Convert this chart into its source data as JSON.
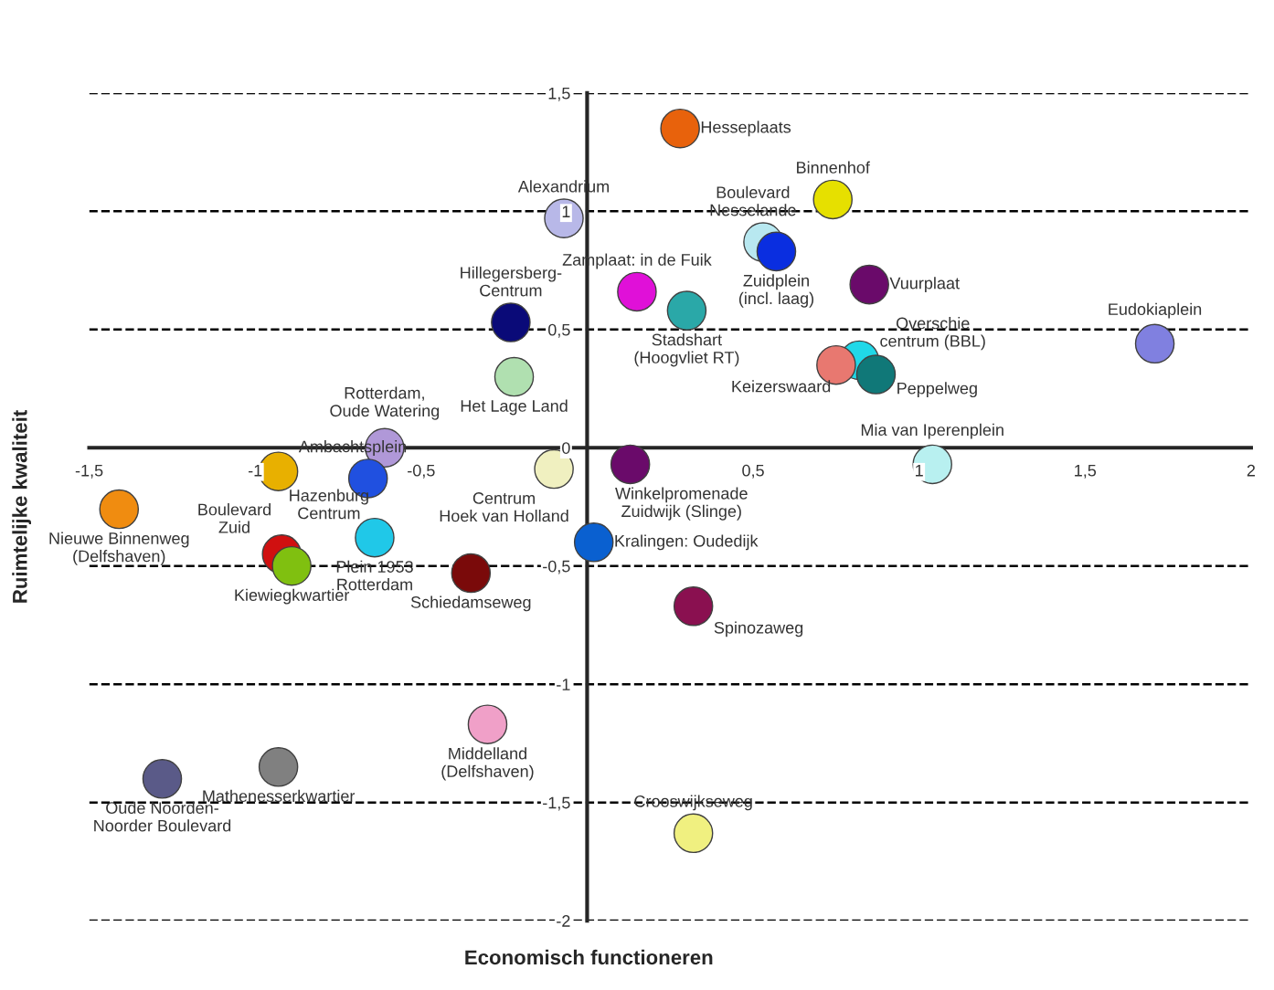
{
  "chart_data": {
    "type": "scatter",
    "xlabel": "Economisch functioneren",
    "ylabel": "Ruimtelijke kwaliteit",
    "xlim": [
      -1.5,
      2
    ],
    "ylim": [
      -2,
      1.5
    ],
    "xticks": [
      {
        "value": -1.5,
        "label": "-1,5"
      },
      {
        "value": -1,
        "label": "-1"
      },
      {
        "value": -0.5,
        "label": "-0,5"
      },
      {
        "value": 0.5,
        "label": "0,5"
      },
      {
        "value": 1,
        "label": "1"
      },
      {
        "value": 1.5,
        "label": "1,5"
      },
      {
        "value": 2,
        "label": "2"
      }
    ],
    "yticks": [
      {
        "value": -2,
        "label": "-2"
      },
      {
        "value": -1.5,
        "label": "-1,5"
      },
      {
        "value": -1,
        "label": "-1"
      },
      {
        "value": -0.5,
        "label": "-0,5"
      },
      {
        "value": 0,
        "label": "0"
      },
      {
        "value": 0.5,
        "label": "0,5"
      },
      {
        "value": 1,
        "label": "1"
      },
      {
        "value": 1.5,
        "label": "1,5"
      }
    ],
    "grid": "y",
    "line_style": "dashed",
    "marker": "circle",
    "series": [
      {
        "x": [
          0.28,
          -0.07,
          0.74,
          0.53,
          0.57,
          0.15,
          0.85,
          0.3,
          -0.23,
          1.71,
          0.82,
          0.75,
          0.87,
          -0.22,
          -0.61,
          -0.66,
          -0.93,
          1.04,
          0.13,
          -0.1,
          -1.41,
          -0.92,
          -0.89,
          -0.64,
          0.02,
          -0.35,
          0.32,
          -0.3,
          -0.93,
          -1.28,
          0.32
        ],
        "values": [
          1.35,
          0.97,
          1.05,
          0.87,
          0.83,
          0.66,
          0.69,
          0.58,
          0.53,
          0.44,
          0.37,
          0.35,
          0.31,
          0.3,
          0.0,
          -0.13,
          -0.1,
          -0.07,
          -0.07,
          -0.09,
          -0.26,
          -0.45,
          -0.5,
          -0.38,
          -0.4,
          -0.53,
          -0.67,
          -1.17,
          -1.35,
          -1.4,
          -1.63
        ],
        "colors": [
          "#e8620c",
          "#b8b8e8",
          "#e6e000",
          "#b8e8f0",
          "#0a2ee0",
          "#e010d8",
          "#6a0a6a",
          "#2aa8a8",
          "#0a0a78",
          "#8080e0",
          "#20d8e8",
          "#e87870",
          "#107878",
          "#b0e0b0",
          "#b098d8",
          "#2050e0",
          "#e8b000",
          "#b8f0f0",
          "#6a0a6a",
          "#f0f0c0",
          "#f08c10",
          "#d01010",
          "#80c010",
          "#20c8e8",
          "#0a60d0",
          "#7a0a0a",
          "#8a1050",
          "#f0a0c8",
          "#808080",
          "#5a5a88",
          "#f0f080"
        ],
        "value_labels": [
          "Hesseplaats",
          "Alexandrium",
          "Binnenhof",
          "Boulevard\nNesselande",
          "Zuidplein\n(incl. laag)",
          "Zamplaat: in de Fuik",
          "Vuurplaat",
          "Stadshart\n(Hoogvliet RT)",
          "Hillegersberg-\nCentrum",
          "Eudokiaplein",
          "Overschie\ncentrum (BBL)",
          "Keizerswaard",
          "Peppelweg",
          "Het Lage Land",
          "Rotterdam,\nOude Watering",
          "Ambachtsplein",
          "Hazenburg\nCentrum",
          "Mia van Iperenplein",
          "Winkelpromenade\nZuidwijk (Slinge)",
          "Centrum\nHoek van Holland",
          "Nieuwe Binnenweg\n(Delfshaven)",
          "Boulevard\nZuid",
          "Kiewiegkwartier",
          "Plein 1953\nRotterdam",
          "Kralingen: Oudedijk",
          "Schiedamseweg",
          "Spinozaweg",
          "Middelland\n(Delfshaven)",
          "Mathenesserkwartier",
          "Oude Noorden-\nNoorder Boulevard",
          "Crooswijkseweg"
        ]
      }
    ]
  }
}
